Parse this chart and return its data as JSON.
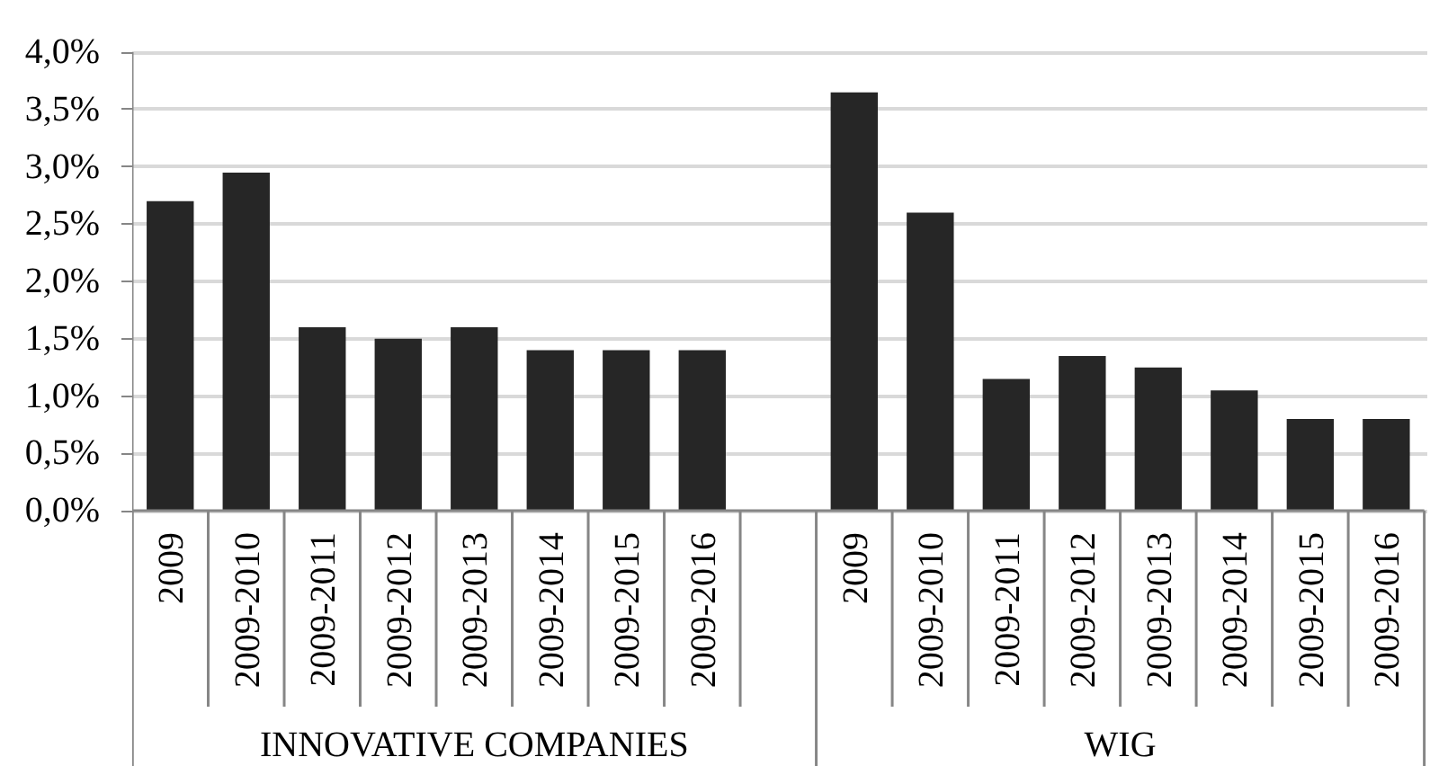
{
  "chart_data": {
    "type": "bar",
    "stacked": true,
    "grid": "y",
    "categories": [
      "2009",
      "2009-2010",
      "2009-2011",
      "2009-2012",
      "2009-2013",
      "2009-2014",
      "2009-2015",
      "2009-2016",
      null,
      "2009",
      "2009-2010",
      "2009-2011",
      "2009-2012",
      "2009-2013",
      "2009-2014",
      "2009-2015",
      "2009-2016"
    ],
    "series": [
      {
        "name": "INNOVATIVE COMPANIES",
        "color": "#262626",
        "values": [
          2.7,
          2.95,
          1.6,
          1.5,
          1.6,
          1.4,
          1.4,
          1.4,
          null,
          null,
          null,
          null,
          null,
          null,
          null,
          null,
          null
        ]
      },
      {
        "name": "WIG",
        "color": "#262626",
        "values": [
          null,
          null,
          null,
          null,
          null,
          null,
          null,
          null,
          null,
          3.65,
          2.6,
          1.15,
          1.35,
          1.25,
          1.05,
          0.8,
          0.8
        ]
      }
    ],
    "ylim": [
      0,
      4
    ],
    "yticks": [
      {
        "value": 0,
        "label": "0,0%"
      },
      {
        "value": 0.5,
        "label": "0,5%"
      },
      {
        "value": 1,
        "label": "1,0%"
      },
      {
        "value": 1.5,
        "label": "1,5%"
      },
      {
        "value": 2,
        "label": "2,0%"
      },
      {
        "value": 2.5,
        "label": "2,5%"
      },
      {
        "value": 3,
        "label": "3,0%"
      },
      {
        "value": 3.5,
        "label": "3,5%"
      },
      {
        "value": 4,
        "label": "4,0%"
      }
    ]
  }
}
